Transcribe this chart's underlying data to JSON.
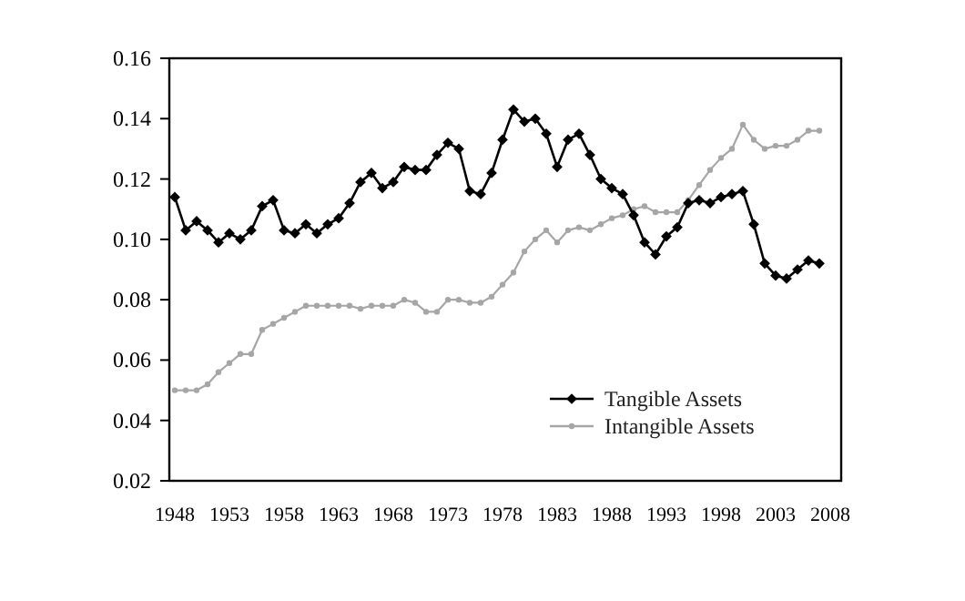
{
  "chart_data": {
    "type": "line",
    "x": [
      1948,
      1949,
      1950,
      1951,
      1952,
      1953,
      1954,
      1955,
      1956,
      1957,
      1958,
      1959,
      1960,
      1961,
      1962,
      1963,
      1964,
      1965,
      1966,
      1967,
      1968,
      1969,
      1970,
      1971,
      1972,
      1973,
      1974,
      1975,
      1976,
      1977,
      1978,
      1979,
      1980,
      1981,
      1982,
      1983,
      1984,
      1985,
      1986,
      1987,
      1988,
      1989,
      1990,
      1991,
      1992,
      1993,
      1994,
      1995,
      1996,
      1997,
      1998,
      1999,
      2000,
      2001,
      2002,
      2003,
      2004,
      2005,
      2006,
      2007
    ],
    "series": [
      {
        "name": "Tangible Assets",
        "color": "#000000",
        "marker": "diamond",
        "values": [
          0.114,
          0.103,
          0.106,
          0.103,
          0.099,
          0.102,
          0.1,
          0.103,
          0.111,
          0.113,
          0.103,
          0.102,
          0.105,
          0.102,
          0.105,
          0.107,
          0.112,
          0.119,
          0.122,
          0.117,
          0.119,
          0.124,
          0.123,
          0.123,
          0.128,
          0.132,
          0.13,
          0.116,
          0.115,
          0.122,
          0.133,
          0.143,
          0.139,
          0.14,
          0.135,
          0.124,
          0.133,
          0.135,
          0.128,
          0.12,
          0.117,
          0.115,
          0.108,
          0.099,
          0.095,
          0.101,
          0.104,
          0.112,
          0.113,
          0.112,
          0.114,
          0.115,
          0.116,
          0.105,
          0.092,
          0.088,
          0.087,
          0.09,
          0.093,
          0.092
        ]
      },
      {
        "name": "Intangible Assets",
        "color": "#a6a6a6",
        "marker": "circle",
        "values": [
          0.05,
          0.05,
          0.05,
          0.052,
          0.056,
          0.059,
          0.062,
          0.062,
          0.07,
          0.072,
          0.074,
          0.076,
          0.078,
          0.078,
          0.078,
          0.078,
          0.078,
          0.077,
          0.078,
          0.078,
          0.078,
          0.08,
          0.079,
          0.076,
          0.076,
          0.08,
          0.08,
          0.079,
          0.079,
          0.081,
          0.085,
          0.089,
          0.096,
          0.1,
          0.103,
          0.099,
          0.103,
          0.104,
          0.103,
          0.105,
          0.107,
          0.108,
          0.11,
          0.111,
          0.109,
          0.109,
          0.109,
          0.113,
          0.118,
          0.123,
          0.127,
          0.13,
          0.138,
          0.133,
          0.13,
          0.131,
          0.131,
          0.133,
          0.136,
          0.136
        ]
      }
    ],
    "xlim": [
      1947.5,
      2009
    ],
    "xticks": [
      1948,
      1953,
      1958,
      1963,
      1968,
      1973,
      1978,
      1983,
      1988,
      1993,
      1998,
      2003,
      2008
    ],
    "ylim": [
      0.02,
      0.16
    ],
    "yticks": [
      {
        "value": 0.02,
        "label": "0.02"
      },
      {
        "value": 0.04,
        "label": "0.04"
      },
      {
        "value": 0.06,
        "label": "0.06"
      },
      {
        "value": 0.08,
        "label": "0.08"
      },
      {
        "value": 0.1,
        "label": "0.10"
      },
      {
        "value": 0.12,
        "label": "0.12"
      },
      {
        "value": 0.14,
        "label": "0.14"
      },
      {
        "value": 0.16,
        "label": "0.16"
      }
    ],
    "legend": "bottom right",
    "grid": false,
    "line_style": "solid"
  }
}
